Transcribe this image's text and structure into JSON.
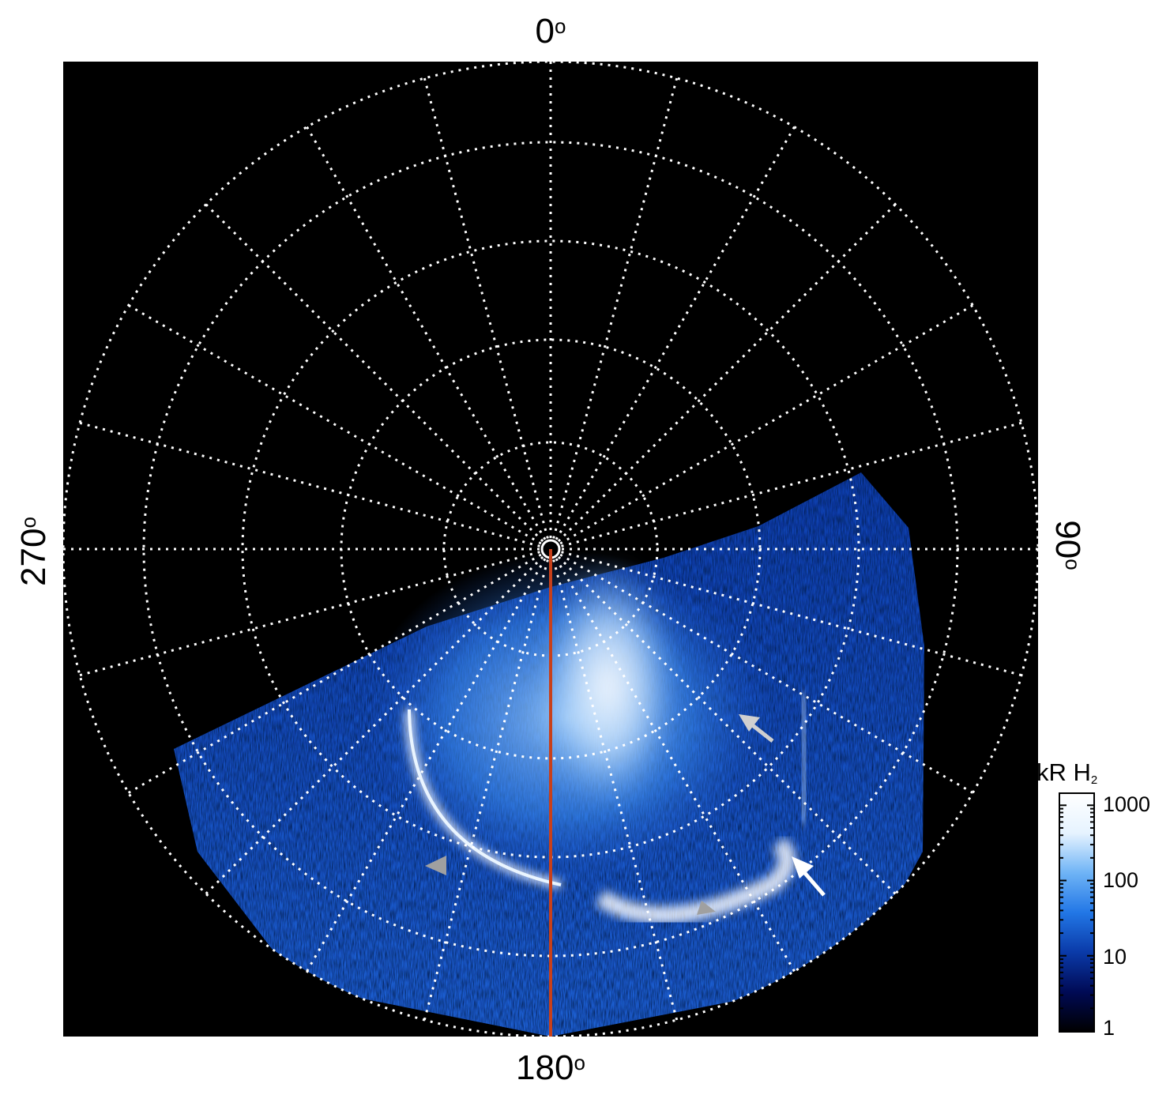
{
  "labels": {
    "top": "0",
    "right": "90",
    "bottom": "180",
    "left": "270",
    "degree_symbol": "o"
  },
  "colorbar": {
    "unit": "kR H",
    "unit_subscript": "2",
    "scale": "log",
    "ticks": [
      "1000",
      "100",
      "10",
      "1"
    ],
    "colors": [
      "#000000",
      "#000a55",
      "#0a3aa8",
      "#2277e6",
      "#6fb4f6",
      "#e6f3ff",
      "#ffffff"
    ]
  },
  "colors": {
    "background": "#000000",
    "grid": "#ffffff",
    "meridian_line": "#c8401a",
    "aurora_glow": "#2f7fe8",
    "gray_arrow": "#a0a0a0",
    "white_arrow": "#e8e8e8"
  },
  "annotations": {
    "gray_triangles": 3,
    "arrows": [
      "light-gray",
      "white"
    ]
  }
}
